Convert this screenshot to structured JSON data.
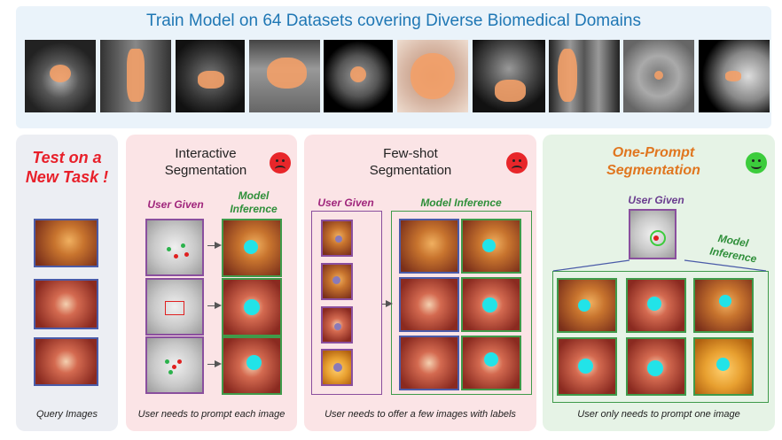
{
  "banner": {
    "title": "Train Model on 64 Datasets covering Diverse Biomedical Domains",
    "title_color": "#1f77b4",
    "bg_color": "#eaf3fa",
    "images": [
      {
        "name": "prostate-mri-thumbnail"
      },
      {
        "name": "spine-ct-thumbnail"
      },
      {
        "name": "brain-mri-thumbnail"
      },
      {
        "name": "ultrasound-thumbnail"
      },
      {
        "name": "brain-lesion-thumbnail"
      },
      {
        "name": "skin-lesion-thumbnail"
      },
      {
        "name": "jaw-ct-thumbnail"
      },
      {
        "name": "lung-xray-thumbnail"
      },
      {
        "name": "retina-grayscale-thumbnail"
      },
      {
        "name": "mammogram-thumbnail"
      }
    ],
    "mask_color": "#f3a068"
  },
  "test_panel": {
    "title_line1": "Test on a",
    "title_line2": "New Task !",
    "title_color": "#e8202a",
    "caption": "Query Images",
    "bg_color": "#eceef3"
  },
  "interactive_panel": {
    "title_line1": "Interactive",
    "title_line2": "Segmentation",
    "face": "sad-face-icon",
    "user_label": "User Given",
    "user_label_color": "#a0267c",
    "model_label_line1": "Model",
    "model_label_line2": "Inference",
    "model_label_color": "#2f8f3a",
    "caption": "User needs to prompt each image",
    "bg_color": "#fbe4e6"
  },
  "fewshot_panel": {
    "title_line1": "Few-shot",
    "title_line2": "Segmentation",
    "face": "sad-face-icon",
    "user_label": "User Given",
    "model_label": "Model Inference",
    "caption": "User needs to offer a few images with labels",
    "bg_color": "#fbe4e6"
  },
  "oneprompt_panel": {
    "title_line1": "One-Prompt",
    "title_line2": "Segmentation",
    "title_color": "#e0761f",
    "face": "happy-face-icon",
    "user_label": "User Given",
    "user_label_color": "#6a3d8f",
    "model_label_line1": "Model",
    "model_label_line2": "Inference",
    "caption": "User only needs to prompt one image",
    "bg_color": "#e6f3e6"
  },
  "colors": {
    "purple_border": "#8a4f9e",
    "green_border": "#3f9a4a",
    "blue_border": "#4a5ba8",
    "cyan_mask": "#22e3e8",
    "fundus_orange": "#c8742e",
    "fundus_dark": "#7a2f1a"
  }
}
